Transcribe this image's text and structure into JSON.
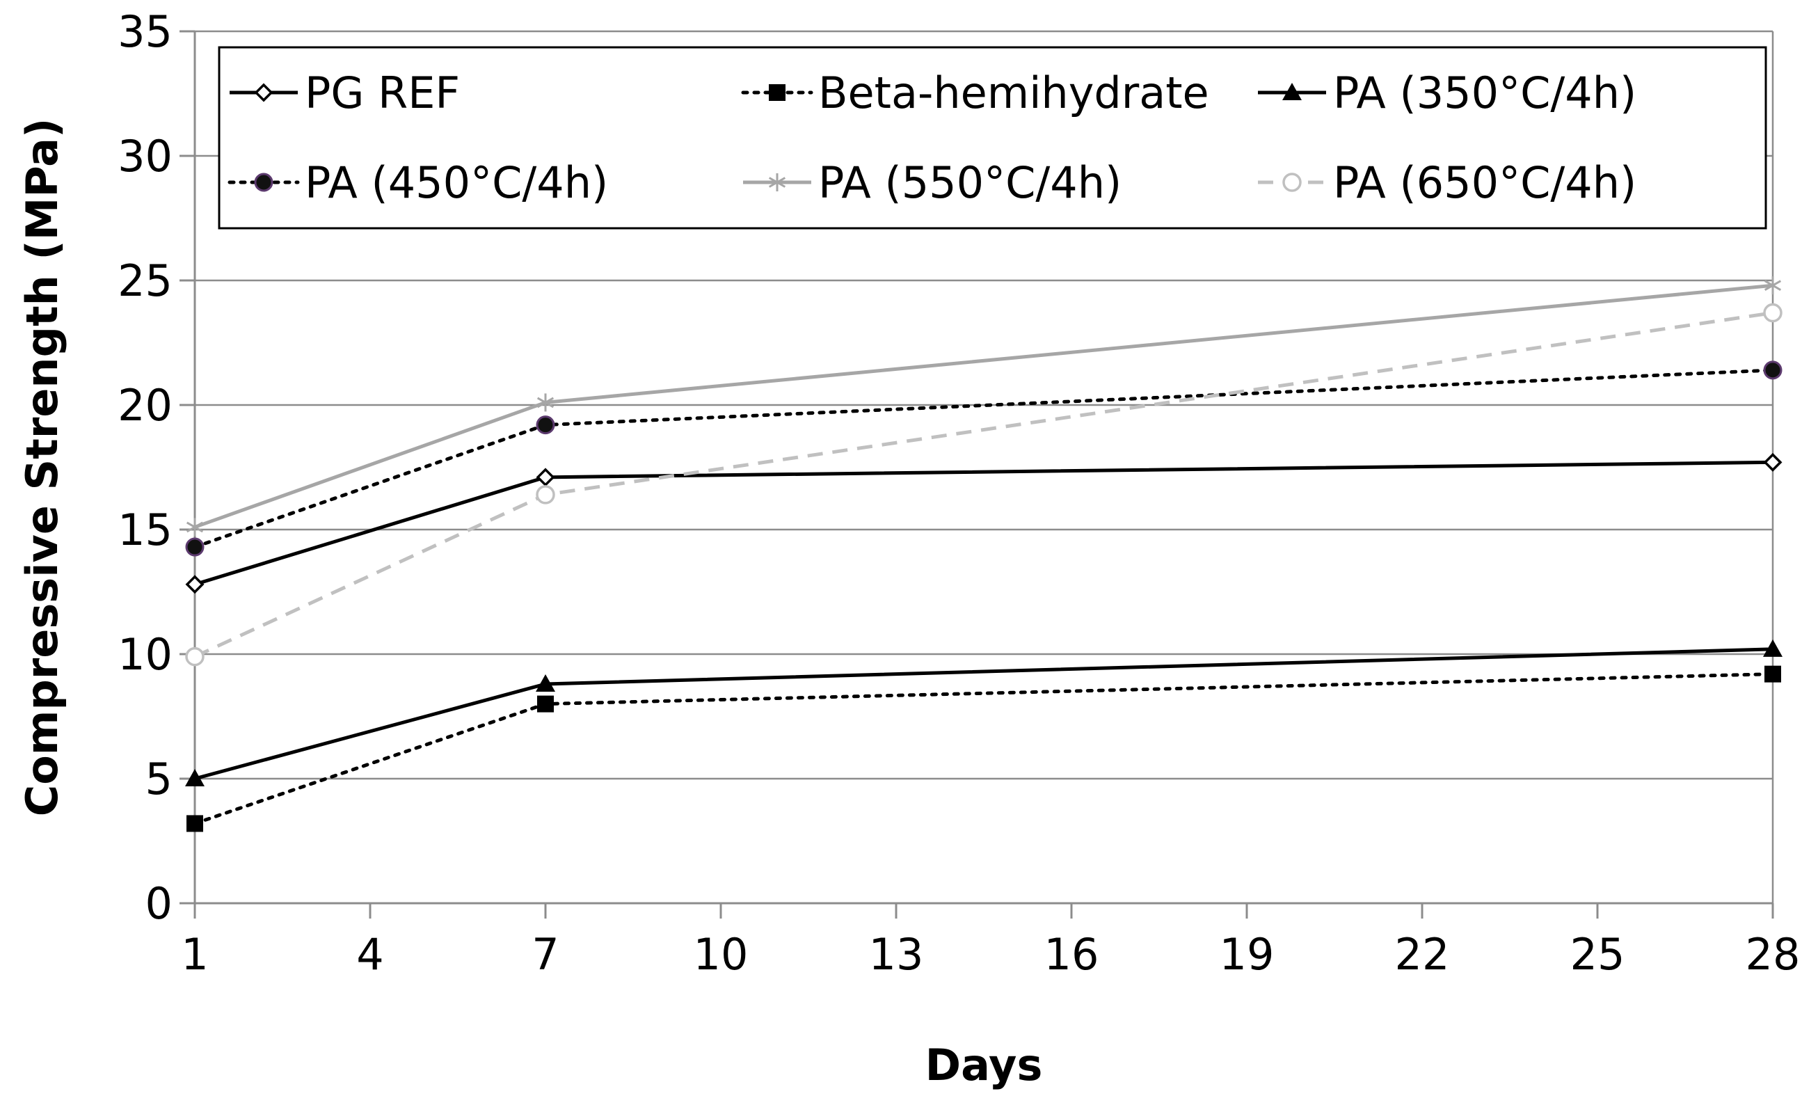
{
  "chart_data": {
    "type": "line",
    "title": "",
    "xlabel": "Days",
    "ylabel": "Compressive Strength (MPa)",
    "xlim": [
      1,
      28
    ],
    "ylim": [
      0,
      35
    ],
    "xticks": [
      1,
      4,
      7,
      10,
      13,
      16,
      19,
      22,
      25,
      28
    ],
    "yticks": [
      0,
      5,
      10,
      15,
      20,
      25,
      30,
      35
    ],
    "grid": "horizontal",
    "legend_position": "top",
    "x": [
      1,
      7,
      28
    ],
    "series": [
      {
        "name": "PG REF",
        "values": [
          12.8,
          17.1,
          17.7
        ],
        "color": "#000000",
        "dash": "solid",
        "marker": "diamond-open"
      },
      {
        "name": "Beta-hemihydrate",
        "values": [
          3.2,
          8.0,
          9.2
        ],
        "color": "#000000",
        "dash": "dotted",
        "marker": "square"
      },
      {
        "name": "PA (350°C/4h)",
        "values": [
          5.0,
          8.8,
          10.2
        ],
        "color": "#000000",
        "dash": "solid",
        "marker": "triangle"
      },
      {
        "name": "PA (450°C/4h)",
        "values": [
          14.3,
          19.2,
          21.4
        ],
        "color": "#000000",
        "dash": "dotted",
        "marker": "circle-filled"
      },
      {
        "name": "PA (550°C/4h)",
        "values": [
          15.1,
          20.1,
          24.8
        ],
        "color": "#a6a6a6",
        "dash": "solid",
        "marker": "star"
      },
      {
        "name": "PA (650°C/4h)",
        "values": [
          9.9,
          16.4,
          23.7
        ],
        "color": "#c0c0c0",
        "dash": "dashed",
        "marker": "circle-open"
      }
    ]
  }
}
